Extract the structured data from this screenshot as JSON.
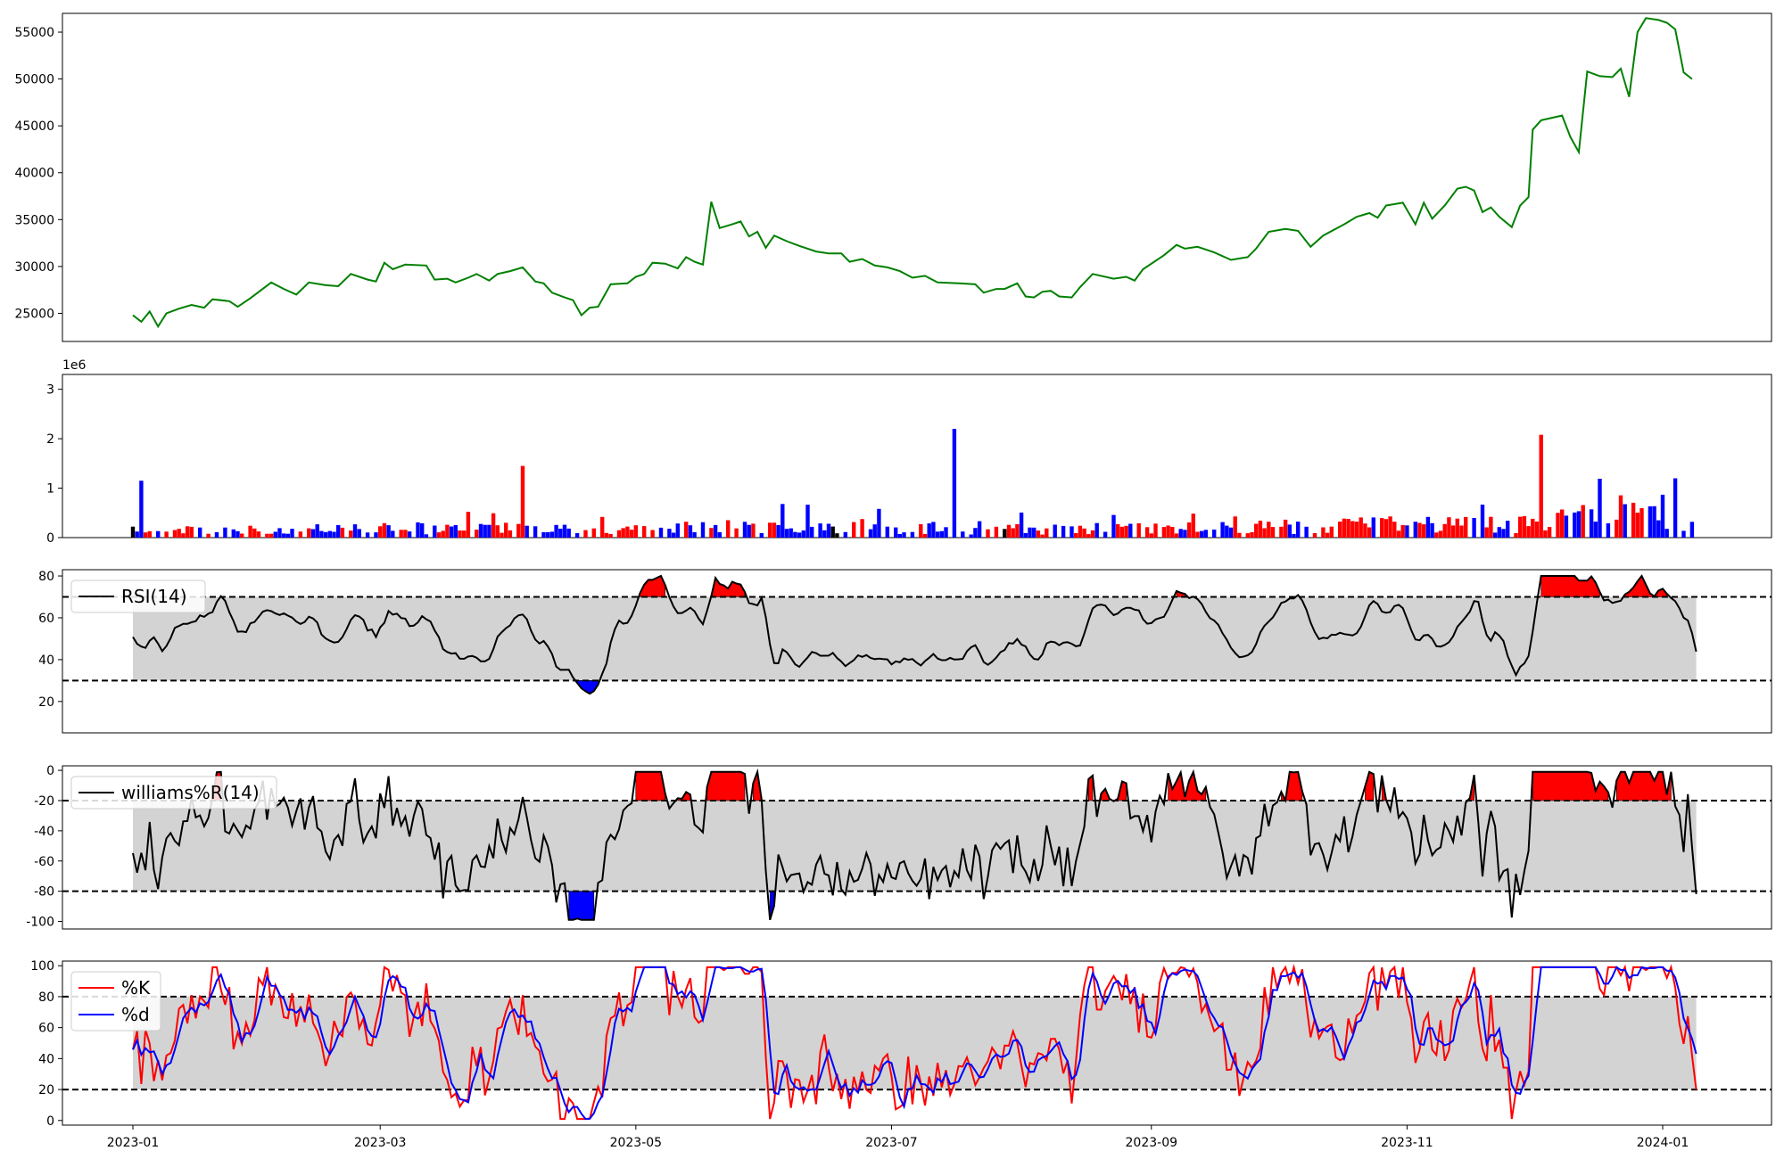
{
  "chart_data": [
    {
      "type": "line",
      "series": [
        {
          "color": "#008000",
          "points": [
            [
              "2023-01-01",
              24800
            ],
            [
              "2023-01-03",
              24100
            ],
            [
              "2023-01-05",
              25200
            ],
            [
              "2023-01-07",
              23600
            ],
            [
              "2023-01-09",
              25000
            ],
            [
              "2023-01-12",
              25500
            ],
            [
              "2023-01-15",
              25900
            ],
            [
              "2023-01-18",
              25600
            ],
            [
              "2023-01-20",
              26500
            ],
            [
              "2023-01-24",
              26300
            ],
            [
              "2023-01-26",
              25700
            ],
            [
              "2023-01-29",
              26600
            ],
            [
              "2023-02-03",
              28300
            ],
            [
              "2023-02-06",
              27600
            ],
            [
              "2023-02-09",
              27000
            ],
            [
              "2023-02-12",
              28300
            ],
            [
              "2023-02-16",
              28000
            ],
            [
              "2023-02-19",
              27900
            ],
            [
              "2023-02-22",
              29200
            ],
            [
              "2023-02-26",
              28600
            ],
            [
              "2023-02-28",
              28400
            ],
            [
              "2023-03-02",
              30400
            ],
            [
              "2023-03-04",
              29700
            ],
            [
              "2023-03-07",
              30200
            ],
            [
              "2023-03-12",
              30100
            ],
            [
              "2023-03-14",
              28600
            ],
            [
              "2023-03-17",
              28700
            ],
            [
              "2023-03-19",
              28300
            ],
            [
              "2023-03-22",
              28800
            ],
            [
              "2023-03-24",
              29200
            ],
            [
              "2023-03-27",
              28500
            ],
            [
              "2023-03-29",
              29200
            ],
            [
              "2023-04-01",
              29500
            ],
            [
              "2023-04-04",
              29900
            ],
            [
              "2023-04-07",
              28400
            ],
            [
              "2023-04-09",
              28200
            ],
            [
              "2023-04-11",
              27200
            ],
            [
              "2023-04-14",
              26700
            ],
            [
              "2023-04-16",
              26400
            ],
            [
              "2023-04-18",
              24800
            ],
            [
              "2023-04-20",
              25600
            ],
            [
              "2023-04-22",
              25700
            ],
            [
              "2023-04-25",
              28100
            ],
            [
              "2023-04-29",
              28200
            ],
            [
              "2023-05-01",
              28900
            ],
            [
              "2023-05-03",
              29200
            ],
            [
              "2023-05-05",
              30400
            ],
            [
              "2023-05-08",
              30300
            ],
            [
              "2023-05-11",
              29800
            ],
            [
              "2023-05-13",
              31000
            ],
            [
              "2023-05-15",
              30500
            ],
            [
              "2023-05-17",
              30200
            ],
            [
              "2023-05-19",
              36900
            ],
            [
              "2023-05-21",
              34100
            ],
            [
              "2023-05-24",
              34500
            ],
            [
              "2023-05-26",
              34800
            ],
            [
              "2023-05-28",
              33200
            ],
            [
              "2023-05-30",
              33700
            ],
            [
              "2023-06-01",
              32000
            ],
            [
              "2023-06-03",
              33300
            ],
            [
              "2023-06-06",
              32700
            ],
            [
              "2023-06-09",
              32200
            ],
            [
              "2023-06-13",
              31600
            ],
            [
              "2023-06-16",
              31400
            ],
            [
              "2023-06-19",
              31400
            ],
            [
              "2023-06-21",
              30500
            ],
            [
              "2023-06-24",
              30800
            ],
            [
              "2023-06-27",
              30100
            ],
            [
              "2023-06-30",
              29900
            ],
            [
              "2023-07-03",
              29500
            ],
            [
              "2023-07-06",
              28800
            ],
            [
              "2023-07-09",
              29000
            ],
            [
              "2023-07-12",
              28300
            ],
            [
              "2023-07-17",
              28200
            ],
            [
              "2023-07-21",
              28100
            ],
            [
              "2023-07-23",
              27200
            ],
            [
              "2023-07-26",
              27600
            ],
            [
              "2023-07-28",
              27600
            ],
            [
              "2023-07-31",
              28200
            ],
            [
              "2023-08-02",
              26800
            ],
            [
              "2023-08-04",
              26700
            ],
            [
              "2023-08-06",
              27300
            ],
            [
              "2023-08-08",
              27400
            ],
            [
              "2023-08-10",
              26800
            ],
            [
              "2023-08-13",
              26700
            ],
            [
              "2023-08-15",
              27800
            ],
            [
              "2023-08-18",
              29200
            ],
            [
              "2023-08-23",
              28700
            ],
            [
              "2023-08-26",
              28900
            ],
            [
              "2023-08-28",
              28500
            ],
            [
              "2023-08-30",
              29700
            ],
            [
              "2023-09-04",
              31200
            ],
            [
              "2023-09-07",
              32300
            ],
            [
              "2023-09-09",
              31900
            ],
            [
              "2023-09-12",
              32100
            ],
            [
              "2023-09-16",
              31500
            ],
            [
              "2023-09-20",
              30700
            ],
            [
              "2023-09-24",
              31000
            ],
            [
              "2023-09-26",
              31900
            ],
            [
              "2023-09-29",
              33700
            ],
            [
              "2023-10-03",
              34000
            ],
            [
              "2023-10-06",
              33800
            ],
            [
              "2023-10-09",
              32100
            ],
            [
              "2023-10-12",
              33300
            ],
            [
              "2023-10-17",
              34500
            ],
            [
              "2023-10-20",
              35300
            ],
            [
              "2023-10-23",
              35700
            ],
            [
              "2023-10-25",
              35200
            ],
            [
              "2023-10-27",
              36500
            ],
            [
              "2023-10-31",
              36800
            ],
            [
              "2023-11-03",
              34500
            ],
            [
              "2023-11-05",
              36800
            ],
            [
              "2023-11-07",
              35100
            ],
            [
              "2023-11-10",
              36500
            ],
            [
              "2023-11-13",
              38300
            ],
            [
              "2023-11-15",
              38500
            ],
            [
              "2023-11-17",
              38100
            ],
            [
              "2023-11-19",
              35800
            ],
            [
              "2023-11-21",
              36300
            ],
            [
              "2023-11-23",
              35300
            ],
            [
              "2023-11-26",
              34200
            ],
            [
              "2023-11-28",
              36500
            ],
            [
              "2023-11-30",
              37400
            ],
            [
              "2023-12-01",
              44600
            ],
            [
              "2023-12-03",
              45600
            ],
            [
              "2023-12-08",
              46100
            ],
            [
              "2023-12-10",
              43800
            ],
            [
              "2023-12-12",
              42200
            ],
            [
              "2023-12-14",
              50800
            ],
            [
              "2023-12-17",
              50300
            ],
            [
              "2023-12-20",
              50200
            ],
            [
              "2023-12-22",
              51100
            ],
            [
              "2023-12-24",
              48100
            ],
            [
              "2023-12-26",
              55000
            ],
            [
              "2023-12-28",
              56500
            ],
            [
              "2023-12-31",
              56300
            ],
            [
              "2024-01-02",
              56000
            ],
            [
              "2024-01-04",
              55300
            ],
            [
              "2024-01-06",
              50700
            ],
            [
              "2024-01-08",
              50000
            ]
          ]
        }
      ],
      "ylim": [
        22000,
        57000
      ],
      "yticks": [
        25000,
        30000,
        35000,
        40000,
        45000,
        50000,
        55000
      ]
    },
    {
      "type": "bar",
      "ylim": [
        0,
        3300000
      ],
      "yticks": [
        0,
        1,
        2,
        3
      ],
      "offset_label": "1e6",
      "bar_colors": {
        "up": "#ff0000",
        "down": "#0000ff",
        "flat": "#000000"
      }
    },
    {
      "type": "area",
      "ylim": [
        5,
        83
      ],
      "yticks": [
        20,
        40,
        60,
        80
      ],
      "thresholds": [
        30,
        70
      ],
      "legend": [
        "RSI(14)"
      ],
      "fill_colors": {
        "band": "#d3d3d3",
        "over": "#ff0000",
        "under": "#0000ff"
      }
    },
    {
      "type": "area",
      "ylim": [
        -105,
        3
      ],
      "yticks": [
        -100,
        -80,
        -60,
        -40,
        -20,
        0
      ],
      "thresholds": [
        -80,
        -20
      ],
      "legend": [
        "williams%R(14)"
      ],
      "fill_colors": {
        "band": "#d3d3d3",
        "over": "#ff0000",
        "under": "#0000ff"
      }
    },
    {
      "type": "line",
      "ylim": [
        -3,
        103
      ],
      "yticks": [
        0,
        20,
        40,
        60,
        80,
        100
      ],
      "thresholds": [
        20,
        80
      ],
      "legend": [
        "%K",
        "%d"
      ],
      "series_colors": [
        "#ff0000",
        "#0000ff"
      ],
      "band_color": "#d3d3d3",
      "xticks": [
        "2023-01",
        "2023-03",
        "2023-05",
        "2023-07",
        "2023-09",
        "2023-11",
        "2024-01"
      ]
    }
  ]
}
